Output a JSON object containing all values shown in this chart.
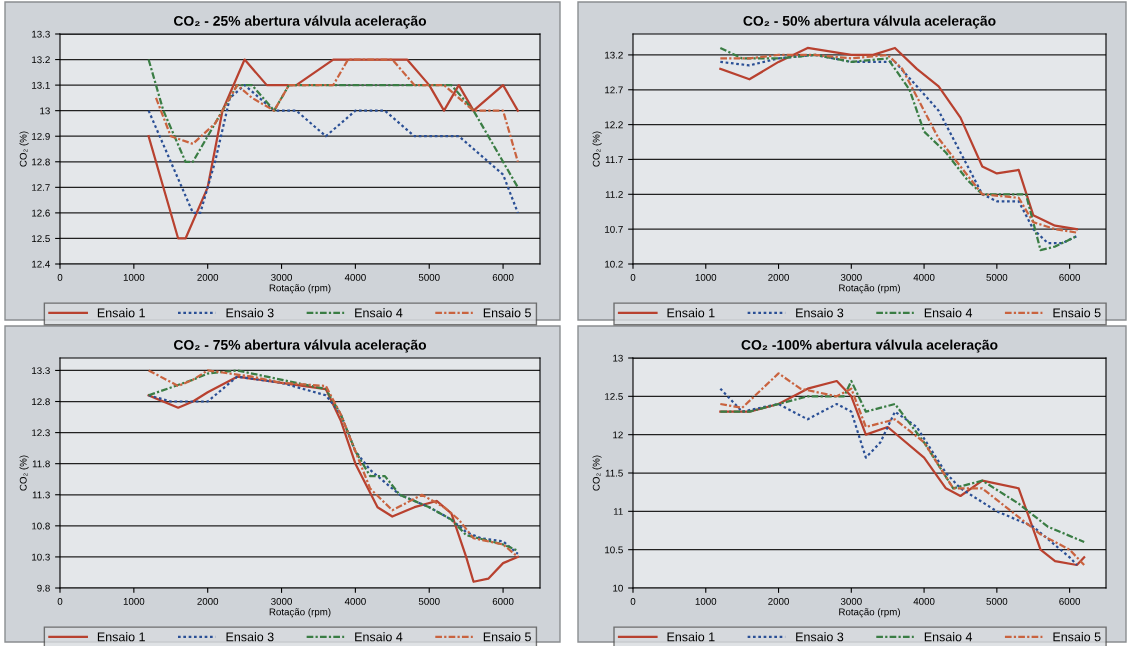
{
  "chart_data": [
    {
      "type": "line",
      "title": "CO₂ - 25% abertura válvula aceleração",
      "xlabel": "Rotação (rpm)",
      "ylabel": "CO₂ (%)",
      "xlim": [
        0,
        6500
      ],
      "xticks": [
        0,
        1000,
        2000,
        3000,
        4000,
        5000,
        6000
      ],
      "ylim": [
        12.4,
        13.3
      ],
      "yticks": [
        12.4,
        12.5,
        12.6,
        12.7,
        12.8,
        12.9,
        13,
        13.1,
        13.2,
        13.3
      ],
      "grid": "y",
      "legend": "bottom",
      "marker": "none",
      "series": [
        {
          "name": "Ensaio 1",
          "color": "#b8412f",
          "line_style": "solid",
          "x": [
            1200,
            1600,
            1700,
            2000,
            2200,
            2500,
            2800,
            3200,
            3700,
            4000,
            4700,
            5000,
            5200,
            5400,
            5600,
            6000,
            6200
          ],
          "values": [
            12.9,
            12.5,
            12.5,
            12.7,
            13.0,
            13.2,
            13.1,
            13.1,
            13.2,
            13.2,
            13.2,
            13.1,
            13.0,
            13.1,
            13.0,
            13.1,
            13.0
          ]
        },
        {
          "name": "Ensaio 3",
          "color": "#2a4f95",
          "line_style": "dotted",
          "x": [
            1200,
            1500,
            1800,
            1900,
            2100,
            2300,
            2500,
            2700,
            2900,
            3200,
            3600,
            4000,
            4200,
            4400,
            4800,
            5000,
            5400,
            5800,
            6000,
            6200
          ],
          "values": [
            13.0,
            12.8,
            12.6,
            12.6,
            12.8,
            13.05,
            13.1,
            13.05,
            13.0,
            13.0,
            12.9,
            13.0,
            13.0,
            13.0,
            12.9,
            12.9,
            12.9,
            12.8,
            12.75,
            12.6
          ]
        },
        {
          "name": "Ensaio 4",
          "color": "#3a7d44",
          "line_style": "dashed",
          "x": [
            1200,
            1400,
            1700,
            1800,
            2100,
            2400,
            2600,
            2900,
            3100,
            3500,
            5300,
            5600,
            5800,
            6200
          ],
          "values": [
            13.2,
            13.0,
            12.8,
            12.8,
            12.95,
            13.1,
            13.1,
            13.0,
            13.1,
            13.1,
            13.1,
            13.0,
            12.9,
            12.7
          ]
        },
        {
          "name": "Ensaio 5",
          "color": "#c9633f",
          "line_style": "dashed",
          "x": [
            1300,
            1500,
            1800,
            2100,
            2400,
            2600,
            2900,
            3100,
            3700,
            3900,
            4500,
            4800,
            5200,
            5600,
            5800,
            6000,
            6200
          ],
          "values": [
            13.05,
            12.9,
            12.87,
            12.95,
            13.1,
            13.05,
            13.0,
            13.1,
            13.1,
            13.2,
            13.2,
            13.1,
            13.1,
            13.0,
            13.0,
            13.0,
            12.8
          ]
        }
      ]
    },
    {
      "type": "line",
      "title": "CO₂ - 50% abertura válvula aceleração",
      "xlabel": "Rotação (rpm)",
      "ylabel": "CO₂ (%)",
      "xlim": [
        0,
        6500
      ],
      "xticks": [
        0,
        1000,
        2000,
        3000,
        4000,
        5000,
        6000
      ],
      "ylim": [
        10.2,
        13.5
      ],
      "yticks": [
        10.2,
        10.7,
        11.2,
        11.7,
        12.2,
        12.7,
        13.2
      ],
      "grid": "y",
      "legend": "bottom",
      "marker": "none",
      "series": [
        {
          "name": "Ensaio 1",
          "color": "#b8412f",
          "line_style": "solid",
          "x": [
            1200,
            1600,
            2000,
            2400,
            3000,
            3300,
            3600,
            3900,
            4200,
            4500,
            4800,
            5000,
            5300,
            5500,
            5800,
            6100
          ],
          "values": [
            13.0,
            12.85,
            13.1,
            13.3,
            13.2,
            13.2,
            13.3,
            13.0,
            12.75,
            12.3,
            11.6,
            11.5,
            11.55,
            10.9,
            10.75,
            10.7
          ]
        },
        {
          "name": "Ensaio 3",
          "color": "#2a4f95",
          "line_style": "dotted",
          "x": [
            1200,
            1600,
            2000,
            2500,
            3000,
            3600,
            3900,
            4200,
            4500,
            4800,
            5000,
            5300,
            5500,
            5700,
            5900,
            6100
          ],
          "values": [
            13.1,
            13.05,
            13.15,
            13.2,
            13.1,
            13.1,
            12.75,
            12.4,
            11.8,
            11.2,
            11.1,
            11.1,
            10.7,
            10.5,
            10.5,
            10.6
          ]
        },
        {
          "name": "Ensaio 4",
          "color": "#3a7d44",
          "line_style": "dashed",
          "x": [
            1200,
            1500,
            2000,
            2500,
            3000,
            3500,
            3800,
            4000,
            4300,
            4600,
            4800,
            5200,
            5400,
            5600,
            5800,
            6100
          ],
          "values": [
            13.3,
            13.15,
            13.15,
            13.2,
            13.1,
            13.15,
            12.7,
            12.1,
            11.8,
            11.4,
            11.2,
            11.2,
            11.2,
            10.4,
            10.45,
            10.6
          ]
        },
        {
          "name": "Ensaio 5",
          "color": "#c9633f",
          "line_style": "dashed",
          "x": [
            1200,
            1600,
            2000,
            2500,
            3000,
            3500,
            3700,
            3900,
            4200,
            4500,
            4800,
            5300,
            5500,
            5800,
            6100
          ],
          "values": [
            13.15,
            13.15,
            13.2,
            13.2,
            13.15,
            13.2,
            13.0,
            12.6,
            12.0,
            11.6,
            11.2,
            11.15,
            10.8,
            10.7,
            10.65
          ]
        }
      ]
    },
    {
      "type": "line",
      "title": "CO₂ - 75% abertura válvula aceleração",
      "xlabel": "Rotação (rpm)",
      "ylabel": "CO₂ (%)",
      "xlim": [
        0,
        6500
      ],
      "xticks": [
        0,
        1000,
        2000,
        3000,
        4000,
        5000,
        6000
      ],
      "ylim": [
        9.8,
        13.5
      ],
      "yticks": [
        9.8,
        10.3,
        10.8,
        11.3,
        11.8,
        12.3,
        12.8,
        13.3
      ],
      "grid": "y",
      "legend": "bottom",
      "marker": "none",
      "series": [
        {
          "name": "Ensaio 1",
          "color": "#b8412f",
          "line_style": "solid",
          "x": [
            1200,
            1600,
            1800,
            2000,
            2400,
            3000,
            3600,
            3800,
            4000,
            4300,
            4500,
            4800,
            5100,
            5300,
            5500,
            5600,
            5800,
            6000,
            6200
          ],
          "values": [
            12.9,
            12.7,
            12.8,
            12.95,
            13.2,
            13.1,
            13.0,
            12.5,
            11.8,
            11.1,
            10.95,
            11.1,
            11.2,
            11.0,
            10.3,
            9.9,
            9.95,
            10.2,
            10.3
          ]
        },
        {
          "name": "Ensaio 3",
          "color": "#2a4f95",
          "line_style": "dotted",
          "x": [
            1200,
            1500,
            2000,
            2200,
            2400,
            3000,
            3600,
            3800,
            4000,
            4200,
            4600,
            5000,
            5300,
            5500,
            5700,
            6000,
            6200
          ],
          "values": [
            12.9,
            12.8,
            12.8,
            13.0,
            13.2,
            13.1,
            12.9,
            12.6,
            12.0,
            11.7,
            11.3,
            11.1,
            10.9,
            10.7,
            10.6,
            10.55,
            10.35
          ]
        },
        {
          "name": "Ensaio 4",
          "color": "#3a7d44",
          "line_style": "dashed",
          "x": [
            1200,
            1800,
            2000,
            2400,
            2800,
            3600,
            3800,
            4000,
            4200,
            4400,
            4600,
            5000,
            5300,
            5500,
            6000,
            6200
          ],
          "values": [
            12.9,
            13.15,
            13.25,
            13.3,
            13.2,
            13.0,
            12.6,
            12.0,
            11.6,
            11.6,
            11.3,
            11.1,
            10.9,
            10.65,
            10.5,
            10.4
          ]
        },
        {
          "name": "Ensaio 5",
          "color": "#c9633f",
          "line_style": "dashed",
          "x": [
            1200,
            1600,
            1800,
            2000,
            2600,
            3000,
            3600,
            3800,
            4000,
            4200,
            4500,
            4900,
            5200,
            5400,
            5600,
            6000,
            6200
          ],
          "values": [
            13.3,
            13.05,
            13.15,
            13.3,
            13.2,
            13.1,
            13.05,
            12.6,
            12.0,
            11.4,
            11.05,
            11.3,
            11.1,
            10.9,
            10.6,
            10.5,
            10.3
          ]
        }
      ]
    },
    {
      "type": "line",
      "title": "CO₂ -100% abertura válvula aceleração",
      "xlabel": "Rotação (rpm)",
      "ylabel": "CO₂ (%)",
      "xlim": [
        0,
        6500
      ],
      "xticks": [
        0,
        1000,
        2000,
        3000,
        4000,
        5000,
        6000
      ],
      "ylim": [
        10,
        13
      ],
      "yticks": [
        10,
        10.5,
        11,
        11.5,
        12,
        12.5,
        13
      ],
      "grid": "y",
      "legend": "bottom",
      "marker": "none",
      "series": [
        {
          "name": "Ensaio 1",
          "color": "#b8412f",
          "line_style": "solid",
          "x": [
            1200,
            1600,
            2000,
            2400,
            2800,
            3000,
            3200,
            3500,
            4000,
            4300,
            4500,
            4800,
            5300,
            5600,
            5800,
            6100,
            6200
          ],
          "values": [
            12.3,
            12.3,
            12.4,
            12.6,
            12.7,
            12.5,
            12.0,
            12.1,
            11.7,
            11.3,
            11.2,
            11.4,
            11.3,
            10.5,
            10.35,
            10.3,
            10.4
          ]
        },
        {
          "name": "Ensaio 3",
          "color": "#2a4f95",
          "line_style": "dotted",
          "x": [
            1200,
            1500,
            2000,
            2400,
            2800,
            3000,
            3200,
            3400,
            3600,
            3900,
            4300,
            4500,
            5000,
            5500,
            6000,
            6100
          ],
          "values": [
            12.6,
            12.3,
            12.4,
            12.2,
            12.4,
            12.3,
            11.7,
            11.9,
            12.3,
            12.1,
            11.5,
            11.3,
            11.0,
            10.8,
            10.4,
            10.3
          ]
        },
        {
          "name": "Ensaio 4",
          "color": "#3a7d44",
          "line_style": "dashed",
          "x": [
            1200,
            1600,
            2000,
            2400,
            2900,
            3000,
            3200,
            3600,
            4000,
            4400,
            4800,
            5300,
            5700,
            6200
          ],
          "values": [
            12.3,
            12.3,
            12.4,
            12.5,
            12.5,
            12.7,
            12.3,
            12.4,
            11.9,
            11.3,
            11.4,
            11.1,
            10.8,
            10.6
          ]
        },
        {
          "name": "Ensaio 5",
          "color": "#c9633f",
          "line_style": "dashed",
          "x": [
            1200,
            1500,
            2000,
            2300,
            2800,
            3000,
            3200,
            3600,
            4000,
            4400,
            4800,
            5200,
            5600,
            6000,
            6200
          ],
          "values": [
            12.4,
            12.35,
            12.8,
            12.6,
            12.5,
            12.6,
            12.1,
            12.2,
            11.9,
            11.3,
            11.3,
            11.0,
            10.7,
            10.5,
            10.3
          ]
        }
      ]
    }
  ]
}
